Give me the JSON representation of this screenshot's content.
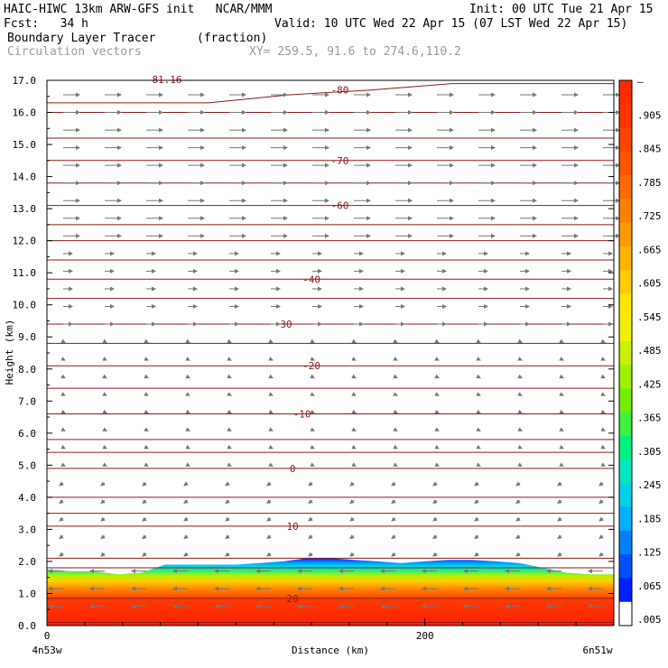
{
  "header": {
    "title_left": "HAIC-HIWC 13km ARW-GFS init   NCAR/MMM",
    "fcst_label": "Fcst:   34 h",
    "init": "Init: 00 UTC Tue 21 Apr 15",
    "valid": "Valid: 10 UTC Wed 22 Apr 15 (07 LST Wed 22 Apr 15)",
    "field": "Boundary Layer Tracer",
    "units": "(fraction)",
    "vectors": "Circulation vectors",
    "xy": "XY= 259.5, 91.6 to 274.6,110.2"
  },
  "chart_data": {
    "type": "heatmap",
    "xlabel": "Distance (km)",
    "ylabel": "Height (km)",
    "xlim": [
      0,
      300
    ],
    "ylim": [
      0,
      17
    ],
    "y_ticks": [
      "0.0",
      "1.0",
      "2.0",
      "3.0",
      "4.0",
      "5.0",
      "6.0",
      "7.0",
      "8.0",
      "9.0",
      "10.0",
      "11.0",
      "12.0",
      "13.0",
      "14.0",
      "15.0",
      "16.0",
      "17.0"
    ],
    "x_ticks": [
      {
        "value": 0,
        "label": "0"
      },
      {
        "value": 200,
        "label": "200"
      }
    ],
    "x_end_labels": {
      "left": "4n53w",
      "right": "6n51w"
    },
    "colorbar": {
      "labels": [
        "–",
        ".905",
        ".845",
        ".785",
        ".725",
        ".665",
        ".605",
        ".545",
        ".485",
        ".425",
        ".365",
        ".305",
        ".245",
        ".185",
        ".125",
        ".065",
        ".005"
      ],
      "colors": [
        "#ff2a00",
        "#ff3300",
        "#ff4400",
        "#ff5500",
        "#ff6a00",
        "#ff8000",
        "#ff9a00",
        "#ffb300",
        "#ffcc00",
        "#ffe600",
        "#f0f000",
        "#c8f000",
        "#a0f000",
        "#70f000",
        "#40f040",
        "#00f080",
        "#00e8c0",
        "#00d0e8",
        "#00b0ff",
        "#0080ff",
        "#0050ff",
        "#0020ff",
        "#ffffff"
      ]
    },
    "temperature_contours": [
      {
        "label": "-80",
        "label_x": 155,
        "y": [
          16.3,
          16.3,
          16.3,
          16.55,
          16.7,
          16.9,
          16.9,
          16.9
        ]
      },
      {
        "label": "-70",
        "label_x": 155,
        "y": [
          14.5,
          14.5,
          14.5,
          14.5,
          14.5,
          14.5,
          14.5,
          14.5
        ]
      },
      {
        "label": "-60",
        "label_x": 155,
        "y": [
          13.1,
          13.1,
          13.1,
          13.1,
          13.1,
          13.1,
          13.1,
          13.1
        ]
      },
      {
        "label": "-40",
        "label_x": 140,
        "y": [
          10.8,
          10.8,
          10.8,
          10.8,
          10.8,
          10.8,
          10.8,
          10.8
        ]
      },
      {
        "label": "-30",
        "label_x": 125,
        "y": [
          9.4,
          9.4,
          9.4,
          9.4,
          9.4,
          9.4,
          9.4,
          9.4
        ]
      },
      {
        "label": "-20",
        "label_x": 140,
        "y": [
          8.1,
          8.1,
          8.1,
          8.1,
          8.1,
          8.1,
          8.1,
          8.1
        ]
      },
      {
        "label": "-10",
        "label_x": 135,
        "y": [
          6.6,
          6.6,
          6.6,
          6.6,
          6.6,
          6.6,
          6.6,
          6.6
        ]
      },
      {
        "label": "0",
        "label_x": 130,
        "y": [
          4.9,
          4.9,
          4.9,
          4.9,
          4.9,
          4.9,
          4.9,
          4.9
        ]
      },
      {
        "label": "10",
        "label_x": 130,
        "y": [
          3.1,
          3.1,
          3.1,
          3.1,
          3.1,
          3.1,
          3.1,
          3.1
        ]
      },
      {
        "label": "20",
        "label_x": 130,
        "y": [
          0.85,
          0.85,
          0.85,
          0.85,
          0.85,
          0.85,
          0.85,
          0.85
        ]
      }
    ],
    "unlabeled_contours_y": [
      15.2,
      16.0,
      13.8,
      12.5,
      12.0,
      11.4,
      10.2,
      8.8,
      7.4,
      5.8,
      5.4,
      4.0,
      3.5,
      2.1,
      1.8,
      0.1
    ],
    "partial_top_label": "81.16",
    "boundary_layer_top_km": [
      1.75,
      1.7,
      1.7,
      1.6,
      1.65,
      1.9,
      1.9,
      1.9,
      1.9,
      1.95,
      2.0,
      2.1,
      2.1,
      2.05,
      2.0,
      1.95,
      2.0,
      2.05,
      2.05,
      2.0,
      1.95,
      1.8,
      1.65,
      1.6,
      1.6
    ]
  }
}
